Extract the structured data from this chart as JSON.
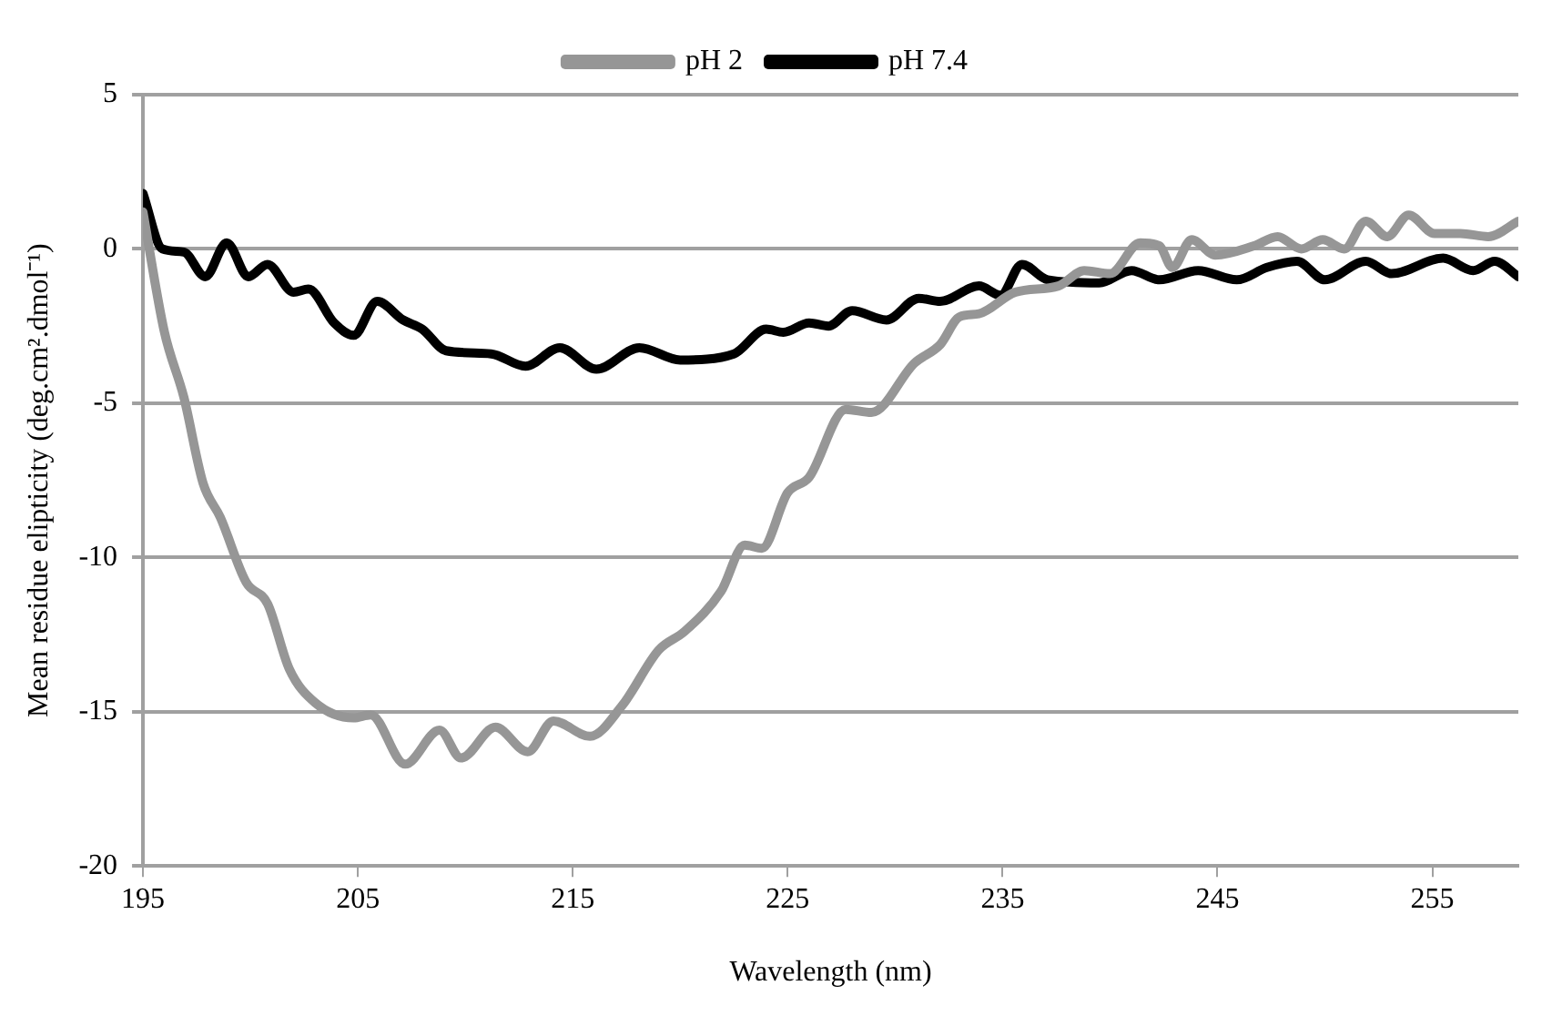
{
  "chart_data": {
    "type": "line",
    "xlabel": "Wavelength (nm)",
    "ylabel": "Mean residue elipticity (deg.cm².dmol⁻¹)",
    "xlim": [
      195,
      259
    ],
    "xticks": [
      195,
      205,
      215,
      225,
      235,
      245,
      255
    ],
    "ylim": [
      -20,
      5
    ],
    "yticks": [
      -20,
      -15,
      -10,
      -5,
      0,
      5
    ],
    "grid": "y",
    "legend": "top",
    "marker": "none",
    "line_style": "solid",
    "series": [
      {
        "name": "pH 2",
        "color": "#969696",
        "x": [
          195,
          196,
          196.9,
          197.8,
          198.6,
          199.8,
          200.8,
          201.8,
          203,
          204.8,
          205.6,
          207.2,
          208.8,
          209.8,
          211.4,
          212.9,
          214.1,
          215.8,
          217.3,
          219,
          220.2,
          221.9,
          223,
          223.8,
          225,
          226,
          227.7,
          228.9,
          230.9,
          232.1,
          233,
          233.9,
          235.6,
          237.6,
          238.8,
          240,
          241.4,
          242.3,
          242.9,
          243.8,
          244.9,
          246.7,
          247.8,
          248.9,
          249.9,
          250.9,
          251.9,
          252.9,
          253.9,
          255.1,
          256.3,
          257.6,
          259
        ],
        "values": [
          1.2,
          -2.7,
          -4.8,
          -7.6,
          -8.7,
          -10.8,
          -11.5,
          -13.6,
          -14.7,
          -15.2,
          -15.1,
          -16.7,
          -15.6,
          -16.5,
          -15.5,
          -16.3,
          -15.3,
          -15.8,
          -14.8,
          -13,
          -12.4,
          -11.1,
          -9.6,
          -9.7,
          -7.9,
          -7.4,
          -5.2,
          -5.3,
          -3.7,
          -3.1,
          -2.2,
          -2.1,
          -1.4,
          -1.2,
          -0.7,
          -0.8,
          0.2,
          0.1,
          -0.6,
          0.3,
          -0.2,
          0.1,
          0.4,
          0,
          0.3,
          0,
          0.9,
          0.4,
          1.1,
          0.5,
          0.5,
          0.4,
          0.9
        ]
      },
      {
        "name": "pH 7.4",
        "color": "#000000",
        "x": [
          195,
          195.9,
          196.9,
          197.9,
          198.9,
          199.9,
          200.8,
          202,
          202.7,
          203.9,
          204.8,
          205.9,
          207.1,
          208,
          209.1,
          211.2,
          212.8,
          214.4,
          216.1,
          218.1,
          220,
          222.5,
          224,
          224.8,
          226,
          226.9,
          228,
          229.6,
          231.1,
          232.1,
          233.9,
          234.9,
          235.9,
          237.1,
          239.5,
          241,
          242.3,
          244.1,
          245.9,
          247.3,
          248.7,
          250,
          251.9,
          253.1,
          255.5,
          256.9,
          257.9,
          259
        ],
        "values": [
          1.8,
          0,
          -0.1,
          -0.9,
          0.2,
          -0.9,
          -0.5,
          -1.4,
          -1.3,
          -2.4,
          -2.8,
          -1.7,
          -2.3,
          -2.6,
          -3.3,
          -3.4,
          -3.8,
          -3.2,
          -3.9,
          -3.2,
          -3.6,
          -3.4,
          -2.6,
          -2.7,
          -2.4,
          -2.5,
          -2,
          -2.3,
          -1.6,
          -1.7,
          -1.2,
          -1.5,
          -0.5,
          -1,
          -1.1,
          -0.7,
          -1,
          -0.7,
          -1,
          -0.6,
          -0.4,
          -1,
          -0.4,
          -0.8,
          -0.3,
          -0.7,
          -0.4,
          -0.9
        ]
      }
    ]
  }
}
